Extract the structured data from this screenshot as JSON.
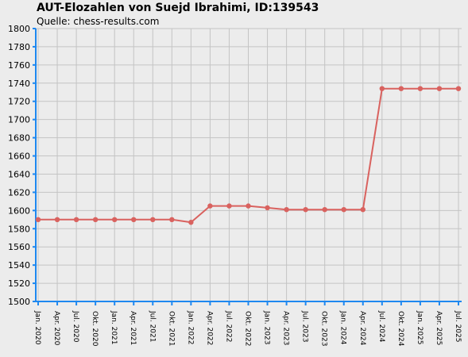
{
  "chart_data": {
    "type": "line",
    "title": "AUT-Elozahlen von Suejd Ibrahimi, ID:139543",
    "subtitle": "Quelle: chess-results.com",
    "xlabel": "",
    "ylabel": "",
    "ylim": [
      1500,
      1800
    ],
    "y_ticks": [
      1500,
      1520,
      1540,
      1560,
      1580,
      1600,
      1620,
      1640,
      1660,
      1680,
      1700,
      1720,
      1740,
      1760,
      1780,
      1800
    ],
    "categories": [
      "Jan. 2020",
      "Apr. 2020",
      "Jul. 2020",
      "Okt. 2020",
      "Jan. 2021",
      "Apr. 2021",
      "Jul. 2021",
      "Okt. 2021",
      "Jan. 2022",
      "Apr. 2022",
      "Jul. 2022",
      "Okt. 2022",
      "Jan. 2023",
      "Apr. 2023",
      "Jul. 2023",
      "Okt. 2023",
      "Jan. 2024",
      "Apr. 2024",
      "Jul. 2024",
      "Okt. 2024",
      "Jan. 2025",
      "Apr. 2025",
      "Jul. 2025"
    ],
    "series": [
      {
        "values": [
          1590,
          1590,
          1590,
          1590,
          1590,
          1590,
          1590,
          1590,
          1587,
          1605,
          1605,
          1605,
          1603,
          1601,
          1601,
          1601,
          1601,
          1601,
          1734,
          1734,
          1734,
          1734,
          1734
        ],
        "color": "#d9625f"
      }
    ],
    "grid": true,
    "legend": "none",
    "colors": {
      "axis": "#1e88f0",
      "grid": "#c4c4c4",
      "background": "#ececec"
    }
  }
}
